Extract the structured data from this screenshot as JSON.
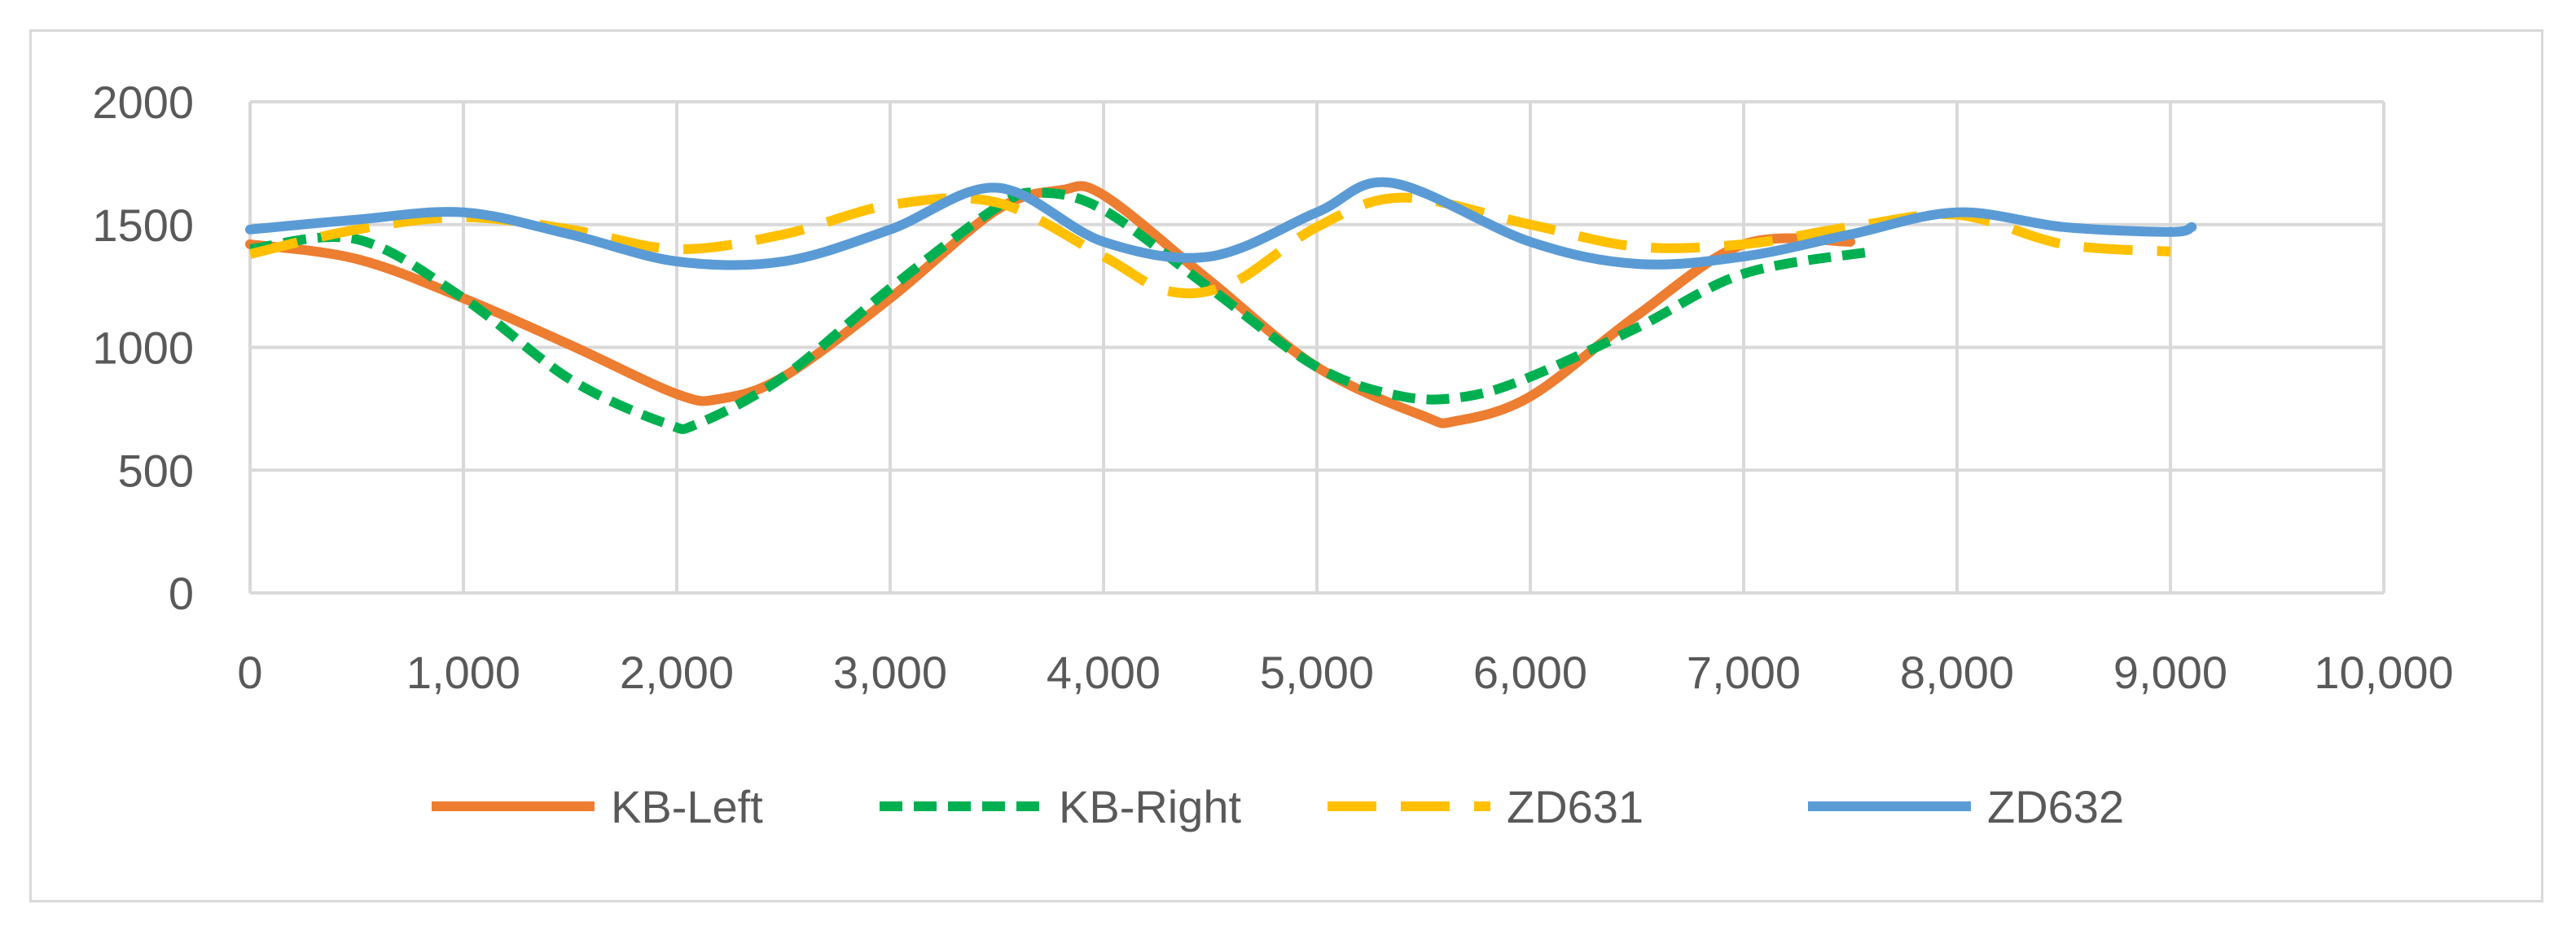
{
  "chart_data": {
    "type": "line",
    "title": "",
    "xlabel": "",
    "ylabel": "",
    "xlim": [
      0,
      10000
    ],
    "ylim": [
      0,
      2000
    ],
    "x_ticks": [
      "0",
      "1,000",
      "2,000",
      "3,000",
      "4,000",
      "5,000",
      "6,000",
      "7,000",
      "8,000",
      "9,000",
      "10,000"
    ],
    "y_ticks": [
      "0",
      "500",
      "1000",
      "1500",
      "2000"
    ],
    "grid": "major gridlines on both axes",
    "legend_position": "bottom",
    "series": [
      {
        "name": "KB-Left",
        "color": "#ED7D31",
        "dash": "solid",
        "x": [
          0,
          500,
          1000,
          1500,
          2000,
          2200,
          2500,
          3000,
          3500,
          3800,
          4000,
          4500,
          5000,
          5500,
          5650,
          6000,
          6500,
          7000,
          7500
        ],
        "y": [
          1420,
          1360,
          1200,
          1010,
          810,
          790,
          880,
          1200,
          1560,
          1640,
          1620,
          1270,
          920,
          720,
          700,
          800,
          1130,
          1420,
          1430
        ]
      },
      {
        "name": "KB-Right",
        "color": "#00B050",
        "dash": "dashed",
        "x": [
          0,
          500,
          1000,
          1500,
          1950,
          2100,
          2500,
          3000,
          3500,
          3700,
          4000,
          4500,
          5000,
          5400,
          5700,
          6000,
          6500,
          7000,
          7600
        ],
        "y": [
          1400,
          1440,
          1200,
          870,
          690,
          690,
          880,
          1240,
          1570,
          1630,
          1560,
          1240,
          920,
          800,
          800,
          880,
          1080,
          1300,
          1390
        ]
      },
      {
        "name": "ZD631",
        "color": "#FFC000",
        "dash": "long-dash",
        "x": [
          0,
          500,
          1000,
          1500,
          2000,
          2500,
          3000,
          3500,
          4000,
          4300,
          4600,
          5000,
          5400,
          6000,
          6500,
          7000,
          7500,
          8000,
          8500,
          9000
        ],
        "y": [
          1380,
          1480,
          1530,
          1480,
          1400,
          1460,
          1580,
          1590,
          1370,
          1230,
          1260,
          1490,
          1610,
          1500,
          1410,
          1420,
          1490,
          1540,
          1420,
          1390
        ]
      },
      {
        "name": "ZD632",
        "color": "#5B9BD5",
        "dash": "solid",
        "x": [
          0,
          500,
          1000,
          1500,
          2000,
          2500,
          3000,
          3500,
          4000,
          4500,
          5000,
          5350,
          6000,
          6500,
          7000,
          7500,
          8000,
          8500,
          9000,
          9100
        ],
        "y": [
          1480,
          1520,
          1550,
          1460,
          1350,
          1350,
          1480,
          1650,
          1430,
          1370,
          1550,
          1670,
          1430,
          1340,
          1370,
          1460,
          1550,
          1490,
          1470,
          1490
        ]
      }
    ]
  }
}
